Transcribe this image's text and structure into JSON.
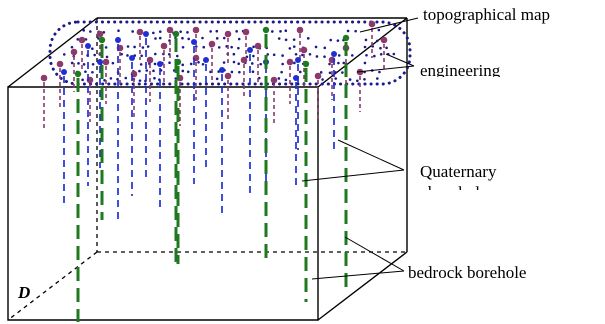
{
  "labels": {
    "topographical_map": "topographical map",
    "engineering": "engineering",
    "quaternary": "Quaternary",
    "quaternary_cut": "borehole",
    "bedrock_borehole": "bedrock borehole",
    "corner_label": "D"
  },
  "colors": {
    "outline": "#000000",
    "map_dots": "#1a1a8c",
    "engineering": "#8b3a6b",
    "quaternary": "#1f2fd6",
    "bedrock": "#1f7a1f"
  }
}
